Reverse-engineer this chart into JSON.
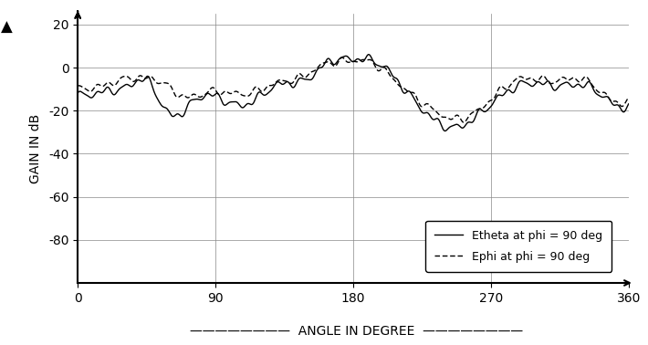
{
  "title": "",
  "xlabel": "ANGLE IN DEGREE",
  "ylabel": "GAIN IN dB",
  "xlim": [
    0,
    360
  ],
  "ylim": [
    -100,
    25
  ],
  "yticks": [
    20,
    0,
    -20,
    -40,
    -60,
    -80
  ],
  "xticks": [
    0,
    90,
    180,
    270,
    360
  ],
  "grid": true,
  "legend_labels": [
    "Etheta at phi = 90 deg",
    "Ephi at phi = 90 deg"
  ],
  "line_color": "#000000",
  "bg_color": "#ffffff",
  "n_points": 3600
}
